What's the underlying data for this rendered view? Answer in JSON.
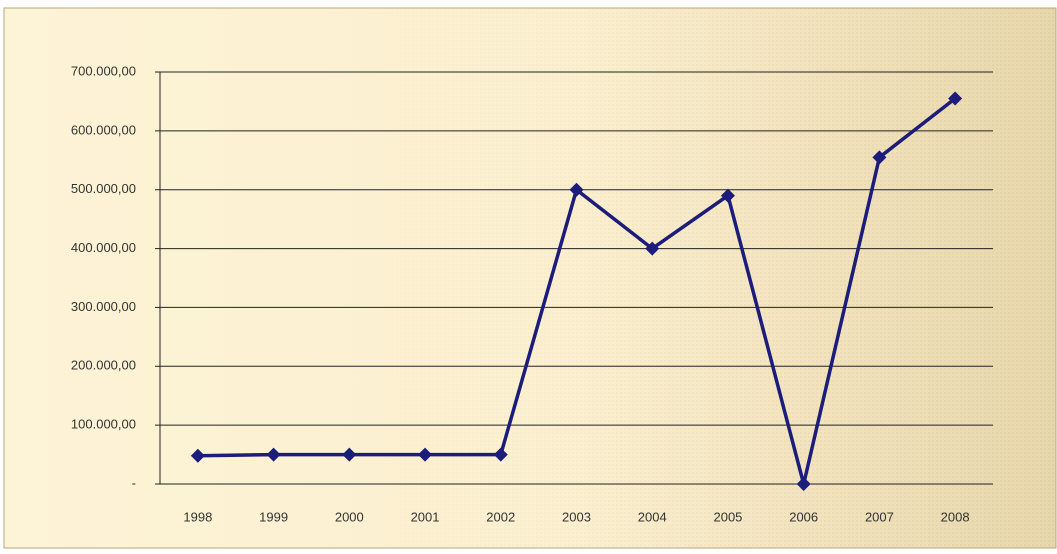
{
  "chart_data": {
    "type": "line",
    "categories": [
      "1998",
      "1999",
      "2000",
      "2001",
      "2002",
      "2003",
      "2004",
      "2005",
      "2006",
      "2007",
      "2008"
    ],
    "series": [
      {
        "color": "#1c1c7a",
        "values": [
          48000,
          50000,
          50000,
          50000,
          50000,
          500000,
          400000,
          490000,
          0,
          555000,
          655000
        ]
      }
    ],
    "ylim": [
      0,
      700000
    ],
    "yticks": [
      {
        "value": 0,
        "label": "-"
      },
      {
        "value": 100000,
        "label": "100.000,00"
      },
      {
        "value": 200000,
        "label": "200.000,00"
      },
      {
        "value": 300000,
        "label": "300.000,00"
      },
      {
        "value": 400000,
        "label": "400.000,00"
      },
      {
        "value": 500000,
        "label": "500.000,00"
      },
      {
        "value": 600000,
        "label": "600.000,00"
      },
      {
        "value": 700000,
        "label": "700.000,00"
      }
    ],
    "grid": true
  }
}
